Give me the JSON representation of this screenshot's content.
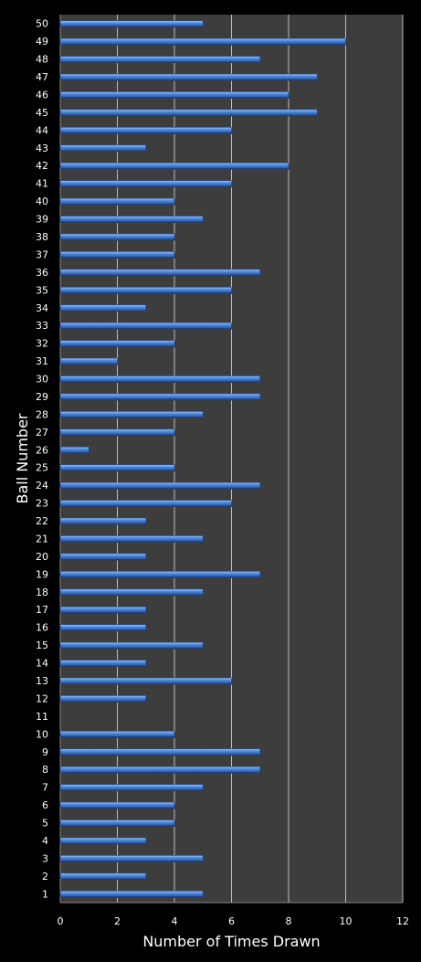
{
  "chart_data": {
    "type": "bar",
    "orientation": "horizontal",
    "title": "",
    "xlabel": "Number of Times Drawn",
    "ylabel": "Ball Number",
    "xlim": [
      0,
      12
    ],
    "xticks": [
      0,
      2,
      4,
      6,
      8,
      10,
      12
    ],
    "grid": true,
    "legend": "none",
    "categories": [
      "1",
      "2",
      "3",
      "4",
      "5",
      "6",
      "7",
      "8",
      "9",
      "10",
      "11",
      "12",
      "13",
      "14",
      "15",
      "16",
      "17",
      "18",
      "19",
      "20",
      "21",
      "22",
      "23",
      "24",
      "25",
      "26",
      "27",
      "28",
      "29",
      "30",
      "31",
      "32",
      "33",
      "34",
      "35",
      "36",
      "37",
      "38",
      "39",
      "40",
      "41",
      "42",
      "43",
      "44",
      "45",
      "46",
      "47",
      "48",
      "49",
      "50"
    ],
    "values": [
      5,
      3,
      5,
      3,
      4,
      4,
      5,
      7,
      7,
      4,
      0,
      3,
      6,
      3,
      5,
      3,
      3,
      5,
      7,
      3,
      5,
      3,
      6,
      7,
      4,
      1,
      4,
      5,
      7,
      7,
      2,
      4,
      6,
      3,
      6,
      7,
      4,
      4,
      5,
      4,
      6,
      8,
      3,
      6,
      9,
      8,
      9,
      7,
      10,
      5
    ],
    "colors": {
      "background": "#000000",
      "plot_area": "#3d3d3d",
      "bar": "#4a7fd0",
      "bar_highlight": "#9cc0f2",
      "bar_shadow": "#1e3f78",
      "grid": "#bdbdbd",
      "text": "#ffffff"
    }
  }
}
